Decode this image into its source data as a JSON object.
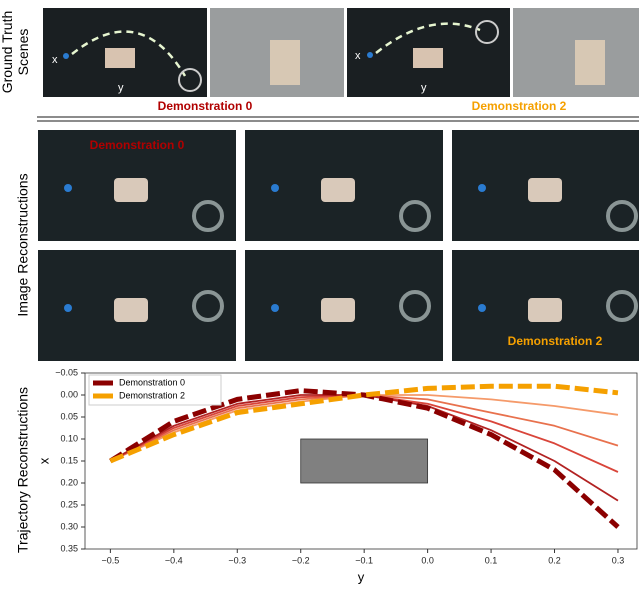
{
  "ground_truth": {
    "label": [
      "Ground Truth",
      "Scenes"
    ],
    "scenes": [
      {
        "x_label": "x",
        "y_label": "y"
      },
      {
        "x_label": "x",
        "y_label": "y"
      }
    ],
    "captions": [
      "Demonstration  0",
      "Demonstration  2"
    ]
  },
  "reconstructions": {
    "label": "Image Reconstructions",
    "overlays": [
      "Demonstration  0",
      "Demonstration  2"
    ]
  },
  "trajectory_label": "Trajectory   Reconstructions",
  "chart_data": {
    "type": "line",
    "x_label": "y",
    "y_label": "x",
    "xlim": [
      -0.54,
      0.33
    ],
    "ylim": [
      -0.05,
      0.35
    ],
    "y_inverted": true,
    "xticks": [
      {
        "value": -0.5,
        "label": "−0.5"
      },
      {
        "value": -0.4,
        "label": "−0.4"
      },
      {
        "value": -0.3,
        "label": "−0.3"
      },
      {
        "value": -0.2,
        "label": "−0.2"
      },
      {
        "value": -0.1,
        "label": "−0.1"
      },
      {
        "value": 0,
        "label": "0.0"
      },
      {
        "value": 0.1,
        "label": "0.1"
      },
      {
        "value": 0.2,
        "label": "0.2"
      },
      {
        "value": 0.3,
        "label": "0.3"
      }
    ],
    "yticks": [
      {
        "value": -0.05,
        "label": "−0.05"
      },
      {
        "value": 0,
        "label": "0.00"
      },
      {
        "value": 0.05,
        "label": "0.05"
      },
      {
        "value": 0.1,
        "label": "0.10"
      },
      {
        "value": 0.15,
        "label": "0.15"
      },
      {
        "value": 0.2,
        "label": "0.20"
      },
      {
        "value": 0.25,
        "label": "0.25"
      },
      {
        "value": 0.3,
        "label": "0.30"
      },
      {
        "value": 0.35,
        "label": "0.35"
      }
    ],
    "x": [
      -0.5,
      -0.4,
      -0.3,
      -0.2,
      -0.1,
      0,
      0.1,
      0.2,
      0.3
    ],
    "series": [
      {
        "color": "#f59a6a",
        "values": [
          0.15,
          0.085,
          0.035,
          0.015,
          0.0,
          0.0,
          0.01,
          0.025,
          0.045
        ]
      },
      {
        "color": "#e8714d",
        "values": [
          0.15,
          0.08,
          0.03,
          0.01,
          0.0,
          0.01,
          0.04,
          0.07,
          0.115
        ]
      },
      {
        "color": "#d9453a",
        "values": [
          0.15,
          0.075,
          0.025,
          0.005,
          0.0,
          0.02,
          0.06,
          0.11,
          0.175
        ]
      },
      {
        "color": "#b22222",
        "values": [
          0.15,
          0.07,
          0.02,
          0.0,
          0.0,
          0.025,
          0.08,
          0.15,
          0.24
        ]
      },
      {
        "name": "Demonstration 0",
        "color": "#8b0000",
        "dashed": true,
        "values": [
          0.15,
          0.06,
          0.01,
          -0.01,
          0.0,
          0.03,
          0.09,
          0.17,
          0.3
        ]
      },
      {
        "name": "Demonstration 2",
        "color": "#f5a000",
        "dashed": true,
        "values": [
          0.15,
          0.09,
          0.04,
          0.02,
          0.0,
          -0.015,
          -0.02,
          -0.02,
          -0.005
        ]
      }
    ],
    "obstacle": {
      "x": [
        -0.2,
        0
      ],
      "y": [
        0.1,
        0.2
      ],
      "color": "#808080"
    },
    "legend": "upper left"
  }
}
